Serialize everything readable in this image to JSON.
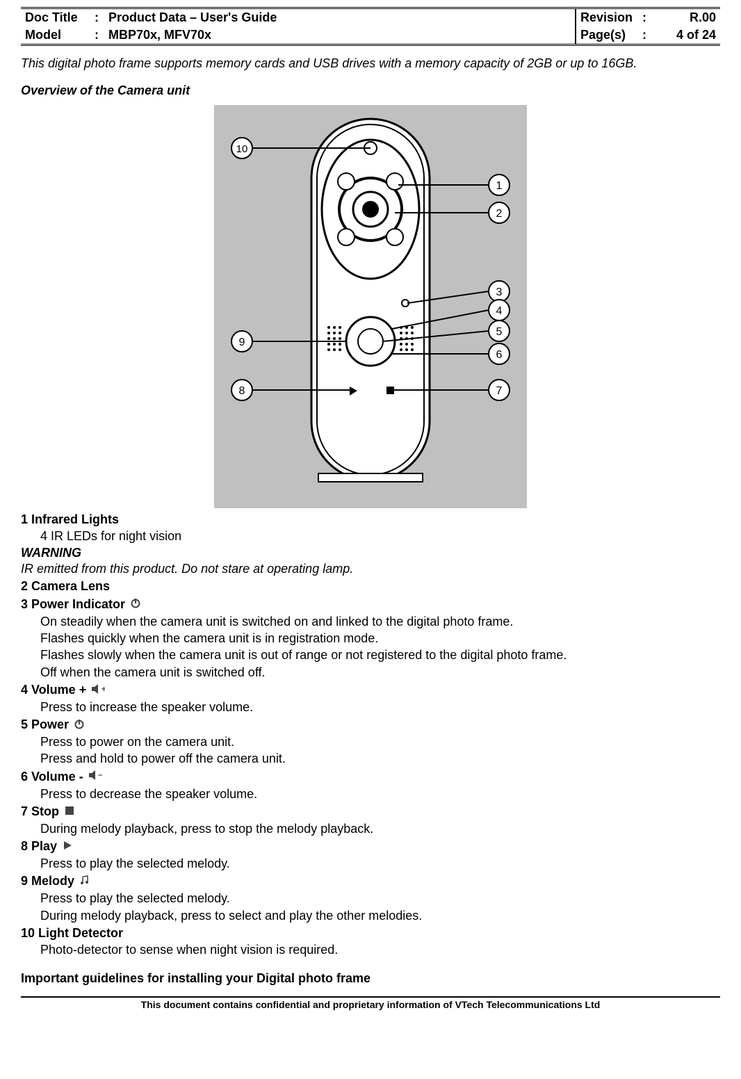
{
  "header": {
    "docTitleLabel": "Doc Title",
    "docTitleValue": "Product Data – User's Guide",
    "modelLabel": "Model",
    "modelValue": "MBP70x, MFV70x",
    "revisionLabel": "Revision",
    "revisionValue": "R.00",
    "pagesLabel": "Page(s)",
    "pagesValue": "4 of 24",
    "colon": ":"
  },
  "intro": "This digital photo frame supports memory cards and USB drives with a memory capacity of 2GB or up to 16GB.",
  "overviewTitle": "Overview of the Camera unit",
  "diagram": {
    "callouts": [
      "1",
      "2",
      "3",
      "4",
      "5",
      "6",
      "7",
      "8",
      "9",
      "10"
    ],
    "background": "#c0c0c0",
    "bodyFill": "#ffffff",
    "stroke": "#000000"
  },
  "items": [
    {
      "num": "1",
      "title": "Infrared Lights",
      "desc": [
        "4 IR LEDs for night vision"
      ]
    },
    {
      "warningLabel": "WARNING",
      "warningText": "IR emitted from this product. Do not stare at operating lamp."
    },
    {
      "num": "2",
      "title": "Camera Lens",
      "desc": []
    },
    {
      "num": "3",
      "title": "Power Indicator",
      "icon": "power-icon",
      "desc": [
        "On steadily when the camera unit is switched on and linked to the digital photo frame.",
        "Flashes quickly when the camera unit is in registration mode.",
        "Flashes slowly when the camera unit is out of range or not registered to the digital photo frame.",
        "Off when the camera unit is switched off."
      ]
    },
    {
      "num": "4",
      "title": "Volume +",
      "icon": "volume-plus-icon",
      "desc": [
        "Press to increase the speaker volume."
      ]
    },
    {
      "num": "5",
      "title": "Power",
      "icon": "power-icon",
      "desc": [
        "Press to power on the camera unit.",
        "Press and hold to power off the camera unit."
      ]
    },
    {
      "num": "6",
      "title": "Volume -",
      "icon": "volume-minus-icon",
      "desc": [
        "Press to decrease the speaker volume."
      ]
    },
    {
      "num": "7",
      "title": "Stop",
      "icon": "stop-icon",
      "desc": [
        "During melody playback, press to stop the melody playback."
      ]
    },
    {
      "num": "8",
      "title": "Play",
      "icon": "play-icon",
      "desc": [
        "Press to play the selected melody."
      ]
    },
    {
      "num": "9",
      "title": "Melody",
      "icon": "melody-icon",
      "desc": [
        "Press to play the selected melody.",
        "During melody playback, press to select and play the other melodies."
      ]
    },
    {
      "num": "10",
      "title": "Light Detector",
      "desc": [
        "Photo-detector to sense when night vision is required."
      ]
    }
  ],
  "finalHeading": "Important guidelines for installing your Digital photo frame",
  "footer": "This document contains confidential and proprietary information of VTech Telecommunications Ltd"
}
